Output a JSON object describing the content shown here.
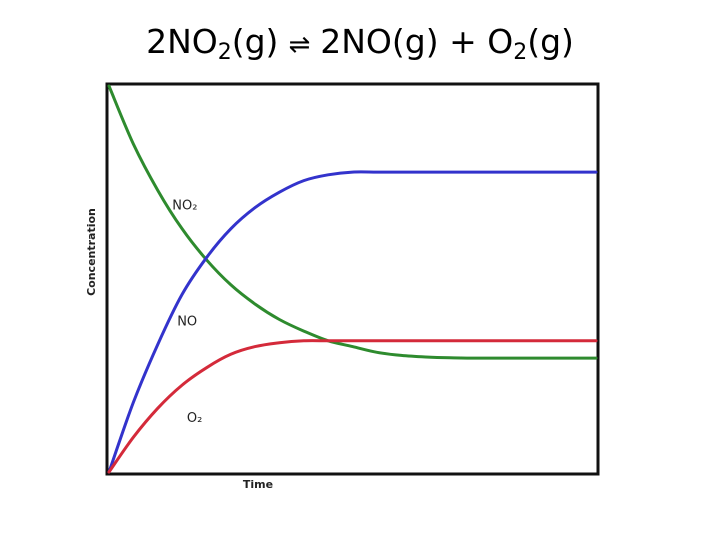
{
  "title": {
    "reactant_coef": "2",
    "reactant": "NO",
    "reactant_sub": "2",
    "reactant_state": "(g)",
    "arrow_glyph": "⇌",
    "product1": "2NO(g)",
    "plus": "+",
    "product2": "O",
    "product2_sub": "2",
    "product2_state": "(g)"
  },
  "chart_data": {
    "type": "line",
    "xlabel": "Time",
    "ylabel": "Concentration",
    "xlim": [
      0,
      100
    ],
    "ylim": [
      0,
      100
    ],
    "grid": false,
    "legend": "none",
    "series": [
      {
        "name": "NO₂",
        "color": "#2e8b2e",
        "x": [
          0,
          5,
          10,
          15,
          20,
          25,
          30,
          35,
          40,
          45,
          50,
          55,
          60,
          65,
          70,
          75,
          80,
          85,
          90,
          95,
          100
        ],
        "y": [
          100,
          85,
          73,
          63,
          55,
          48.5,
          43.5,
          39.5,
          36.5,
          34,
          32.5,
          31,
          30.2,
          29.8,
          29.6,
          29.5,
          29.5,
          29.5,
          29.5,
          29.5,
          29.5
        ]
      },
      {
        "name": "NO",
        "color": "#3333cc",
        "x": [
          0,
          5,
          10,
          15,
          20,
          25,
          30,
          35,
          40,
          45,
          50,
          55,
          60,
          65,
          70,
          75,
          80,
          85,
          90,
          95,
          100
        ],
        "y": [
          0,
          18,
          33,
          46,
          55.5,
          63,
          68.5,
          72.5,
          75.5,
          77,
          77.7,
          77.7,
          77.7,
          77.7,
          77.7,
          77.7,
          77.7,
          77.7,
          77.7,
          77.7,
          77.7
        ]
      },
      {
        "name": "O₂",
        "color": "#d42a3a",
        "x": [
          0,
          5,
          10,
          15,
          20,
          25,
          30,
          35,
          40,
          45,
          50,
          55,
          60,
          65,
          70,
          75,
          80,
          85,
          90,
          95,
          100
        ],
        "y": [
          0,
          9,
          16.5,
          22.5,
          27,
          30.5,
          32.5,
          33.5,
          34,
          34,
          34,
          34,
          34,
          34,
          34,
          34,
          34,
          34,
          34,
          34,
          34
        ]
      }
    ]
  }
}
